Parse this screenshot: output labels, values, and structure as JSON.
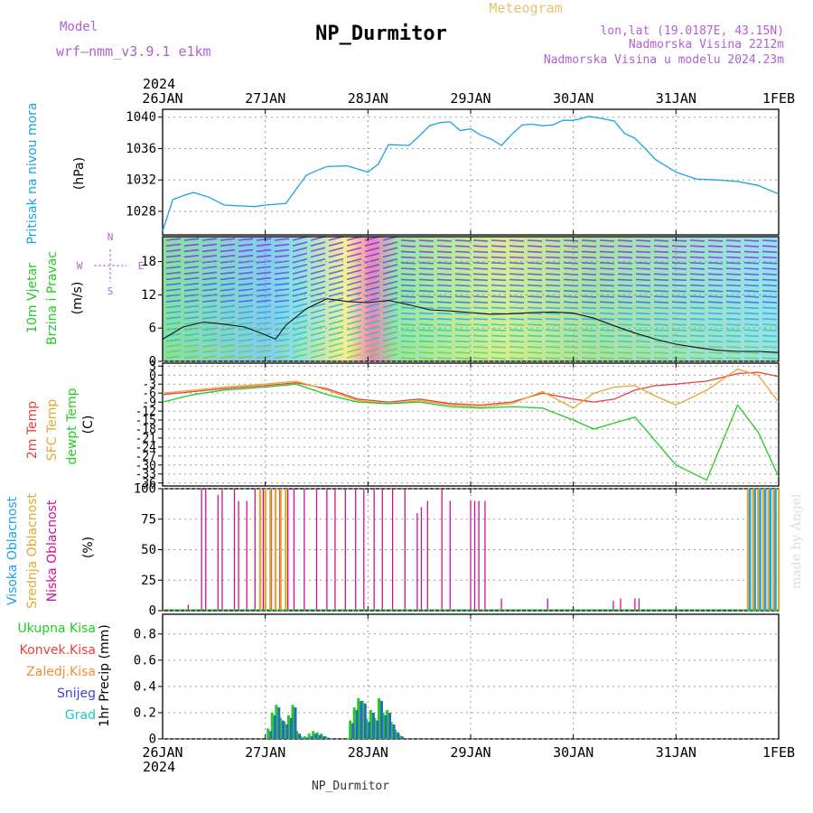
{
  "header": {
    "model_label": "Model",
    "model_name": "wrf—nmm_v3.9.1 e1km",
    "station": "NP_Durmitor",
    "product": "Meteogram",
    "coords": "lon,lat (19.0187E, 43.15N)",
    "elevation": "Nadmorska Visina 2212m",
    "model_elevation": "Nadmorska Visina u modelu 2024.23m"
  },
  "footer": {
    "station": "NP_Durmitor",
    "signature": "made by Angel"
  },
  "time_axis": {
    "year": "2024",
    "ticks": [
      "26JAN",
      "27JAN",
      "28JAN",
      "29JAN",
      "30JAN",
      "31JAN",
      "1FEB"
    ]
  },
  "colors": {
    "pressure": "#1aa3e6",
    "temp2m": "#e84040",
    "sfc_temp": "#e6a830",
    "dewpt": "#22cc22",
    "high_cloud": "#1aa3e6",
    "mid_cloud": "#e6a830",
    "low_cloud": "#cc1199",
    "precip_total": "#22cc22",
    "precip_snow": "#2a6bbf",
    "wind_speed_line": "#111111"
  },
  "chart_data": [
    {
      "type": "line",
      "panel": "pressure",
      "ylabel_lines": [
        "Pritisak na nivou mora",
        "(hPa)"
      ],
      "yticks": [
        "1028",
        "1032",
        "1036",
        "1040"
      ],
      "ylim": [
        1025,
        1041
      ],
      "grid": true,
      "series": [
        {
          "x": [
            0,
            0.1,
            0.2,
            0.3,
            0.45,
            0.6,
            0.75,
            0.9,
            1.0,
            1.2,
            1.4,
            1.5,
            1.6,
            1.8,
            2.0,
            2.1,
            2.2,
            2.4,
            2.5,
            2.6,
            2.7,
            2.8,
            2.9,
            3.0,
            3.1,
            3.2,
            3.3,
            3.4,
            3.5,
            3.6,
            3.7,
            3.8,
            3.9,
            4.0,
            4.1,
            4.15,
            4.25,
            4.4,
            4.5,
            4.6,
            4.7,
            4.8,
            5.0,
            5.2,
            5.4,
            5.6,
            5.8,
            6.0
          ],
          "y": [
            1025.5,
            1029.5,
            1030.0,
            1030.4,
            1029.8,
            1028.8,
            1028.7,
            1028.6,
            1028.8,
            1029.0,
            1032.6,
            1033.2,
            1033.7,
            1033.8,
            1033.0,
            1034.0,
            1036.5,
            1036.4,
            1037.6,
            1038.9,
            1039.3,
            1039.4,
            1038.3,
            1038.5,
            1037.7,
            1037.2,
            1036.4,
            1037.8,
            1039.0,
            1039.1,
            1038.9,
            1039.0,
            1039.6,
            1039.6,
            1039.9,
            1040.1,
            1039.9,
            1039.5,
            1037.9,
            1037.3,
            1036.0,
            1034.6,
            1033.0,
            1032.1,
            1032.0,
            1031.8,
            1031.3,
            1030.2
          ]
        }
      ]
    },
    {
      "type": "line",
      "panel": "wind",
      "ylabel_lines": [
        "10m Vjetar",
        "Brzina i Pravac",
        "(m/s)"
      ],
      "compass": [
        "N",
        "W",
        "E",
        "S"
      ],
      "yticks": [
        "0",
        "6",
        "12",
        "18"
      ],
      "ylim": [
        0,
        22.5
      ],
      "grid": true,
      "series": [
        {
          "x": [
            0,
            0.2,
            0.4,
            0.6,
            0.8,
            1.0,
            1.1,
            1.2,
            1.3,
            1.4,
            1.6,
            1.8,
            2.0,
            2.2,
            2.4,
            2.6,
            2.8,
            3.0,
            3.2,
            3.4,
            3.6,
            3.8,
            4.0,
            4.2,
            4.4,
            4.6,
            4.8,
            5.0,
            5.2,
            5.4,
            5.6,
            5.8,
            6.0
          ],
          "y": [
            4,
            6.2,
            7.1,
            6.7,
            6.2,
            4.8,
            4.0,
            6.5,
            8.0,
            9.5,
            11.3,
            10.8,
            10.6,
            11.0,
            10.2,
            9.3,
            9.1,
            8.8,
            8.5,
            8.6,
            8.8,
            8.9,
            8.7,
            7.8,
            6.4,
            5.1,
            4.0,
            3.1,
            2.5,
            2.0,
            1.8,
            1.8,
            1.6
          ]
        }
      ]
    },
    {
      "type": "line",
      "panel": "temperature",
      "ylabel_lines": [
        "2m Temp",
        "SFC Temp",
        "dewpt Temp",
        "(C)"
      ],
      "yticks": [
        "-36",
        "-33",
        "-30",
        "-27",
        "-24",
        "-21",
        "-18",
        "-15",
        "-12",
        "-9",
        "-6",
        "-3",
        "0",
        "3"
      ],
      "ylim": [
        -37,
        4
      ],
      "grid": true,
      "series": [
        {
          "name": "2m Temp",
          "x": [
            0,
            0.3,
            0.6,
            1.0,
            1.3,
            1.6,
            1.9,
            2.2,
            2.5,
            2.8,
            3.1,
            3.4,
            3.7,
            4.0,
            4.2,
            4.4,
            4.6,
            4.8,
            5.0,
            5.3,
            5.6,
            5.8,
            6.0
          ],
          "y": [
            -6.5,
            -5.5,
            -4.5,
            -3.5,
            -2.5,
            -4.5,
            -8.0,
            -9.0,
            -8.0,
            -9.5,
            -10.0,
            -9.0,
            -6.0,
            -8.0,
            -9.0,
            -8.0,
            -5.0,
            -3.5,
            -3.0,
            -2.0,
            0.5,
            1.0,
            -0.5
          ]
        },
        {
          "name": "SFC Temp",
          "x": [
            0,
            0.3,
            0.6,
            1.0,
            1.3,
            1.6,
            1.9,
            2.2,
            2.5,
            2.8,
            3.1,
            3.4,
            3.7,
            4.0,
            4.2,
            4.4,
            4.6,
            4.8,
            5.0,
            5.3,
            5.6,
            5.8,
            6.0
          ],
          "y": [
            -6.0,
            -5.0,
            -4.0,
            -3.0,
            -2.0,
            -5.0,
            -8.5,
            -9.5,
            -8.5,
            -10.0,
            -10.5,
            -9.5,
            -5.5,
            -11.0,
            -6.0,
            -4.0,
            -3.5,
            -7.0,
            -10.0,
            -5.0,
            2.0,
            0.0,
            -9.0
          ]
        },
        {
          "name": "dewpt Temp",
          "x": [
            0,
            0.3,
            0.6,
            1.0,
            1.3,
            1.6,
            1.9,
            2.2,
            2.5,
            2.8,
            3.1,
            3.4,
            3.7,
            4.0,
            4.2,
            4.4,
            4.6,
            4.8,
            5.0,
            5.3,
            5.6,
            5.8,
            6.0
          ],
          "y": [
            -9.0,
            -6.5,
            -5.0,
            -4.0,
            -3.0,
            -6.5,
            -9.0,
            -9.5,
            -9.0,
            -10.5,
            -11.0,
            -10.5,
            -11.0,
            -15.0,
            -18.0,
            -16.0,
            -14.0,
            -22.0,
            -30.0,
            -35.0,
            -10.0,
            -19.0,
            -34.0
          ]
        }
      ]
    },
    {
      "type": "bar",
      "panel": "cloud_cover",
      "ylabel_lines": [
        "Visoka Oblacnost",
        "Srednja Oblacnost",
        "Niska Oblacnost",
        "(%)"
      ],
      "yticks": [
        "0",
        "25",
        "50",
        "75",
        "100"
      ],
      "ylim": [
        0,
        100
      ],
      "grid": true,
      "series": [
        {
          "name": "Niska Oblacnost",
          "x": [
            0.25,
            0.38,
            0.42,
            0.54,
            0.58,
            0.7,
            0.74,
            0.82,
            0.9,
            0.98,
            1.06,
            1.14,
            1.22,
            1.28,
            1.38,
            1.5,
            1.6,
            1.68,
            1.78,
            1.88,
            1.96,
            2.06,
            2.14,
            2.24,
            2.36,
            2.48,
            2.52,
            2.58,
            2.72,
            2.8,
            3.0,
            3.04,
            3.08,
            3.14,
            3.3,
            3.75,
            4.39,
            4.46,
            4.6,
            4.64
          ],
          "values": [
            5,
            100,
            100,
            95,
            100,
            100,
            90,
            90,
            100,
            100,
            100,
            100,
            100,
            100,
            100,
            100,
            100,
            100,
            100,
            100,
            100,
            100,
            100,
            100,
            100,
            80,
            85,
            90,
            100,
            90,
            90,
            90,
            90,
            90,
            10,
            10,
            8,
            10,
            10,
            10
          ]
        },
        {
          "name": "Srednja Oblacnost",
          "x": [
            0.95,
            1.0,
            1.05,
            1.1,
            1.15,
            1.2,
            5.7,
            5.75,
            5.8,
            5.85,
            5.9,
            5.95,
            6.0
          ],
          "values": [
            100,
            100,
            100,
            100,
            100,
            100,
            100,
            100,
            100,
            100,
            100,
            100,
            100
          ]
        },
        {
          "name": "Visoka Oblacnost",
          "x": [
            5.72,
            5.77,
            5.82,
            5.87,
            5.92,
            5.97
          ],
          "values": [
            100,
            100,
            100,
            100,
            100,
            100
          ]
        }
      ]
    },
    {
      "type": "bar",
      "panel": "precipitation",
      "ylabel_lines": [
        "Ukupna Kisa",
        "Konvek.Kisa",
        "Zaledj.Kisa",
        "Snijeg",
        "Grad",
        "1hr Precip (mm)"
      ],
      "yticks": [
        "0",
        "0.2",
        "0.4",
        "0.6",
        "0.8"
      ],
      "ylim": [
        0,
        0.95
      ],
      "grid": true,
      "series": [
        {
          "name": "Ukupna Kisa",
          "x": [
            1.04,
            1.08,
            1.12,
            1.16,
            1.2,
            1.24,
            1.28,
            1.32,
            1.36,
            1.4,
            1.44,
            1.48,
            1.52,
            1.56,
            1.6,
            1.84,
            1.88,
            1.92,
            1.96,
            2.0,
            2.04,
            2.08,
            2.12,
            2.16,
            2.2,
            2.24,
            2.28,
            2.32
          ],
          "values": [
            0.08,
            0.2,
            0.26,
            0.16,
            0.13,
            0.18,
            0.26,
            0.06,
            0.02,
            0.02,
            0.04,
            0.06,
            0.05,
            0.04,
            0.02,
            0.14,
            0.24,
            0.31,
            0.29,
            0.15,
            0.22,
            0.16,
            0.31,
            0.2,
            0.22,
            0.13,
            0.07,
            0.03
          ]
        },
        {
          "name": "Snijeg",
          "x": [
            1.04,
            1.08,
            1.12,
            1.16,
            1.2,
            1.24,
            1.28,
            1.32,
            1.36,
            1.4,
            1.44,
            1.48,
            1.52,
            1.56,
            1.6,
            1.84,
            1.88,
            1.92,
            1.96,
            2.0,
            2.04,
            2.08,
            2.12,
            2.16,
            2.2,
            2.24,
            2.28,
            2.32
          ],
          "values": [
            0.06,
            0.18,
            0.24,
            0.14,
            0.11,
            0.16,
            0.24,
            0.04,
            0.01,
            0.01,
            0.02,
            0.04,
            0.03,
            0.02,
            0.01,
            0.12,
            0.22,
            0.29,
            0.27,
            0.13,
            0.2,
            0.14,
            0.29,
            0.18,
            0.2,
            0.11,
            0.05,
            0.02
          ]
        }
      ]
    }
  ]
}
